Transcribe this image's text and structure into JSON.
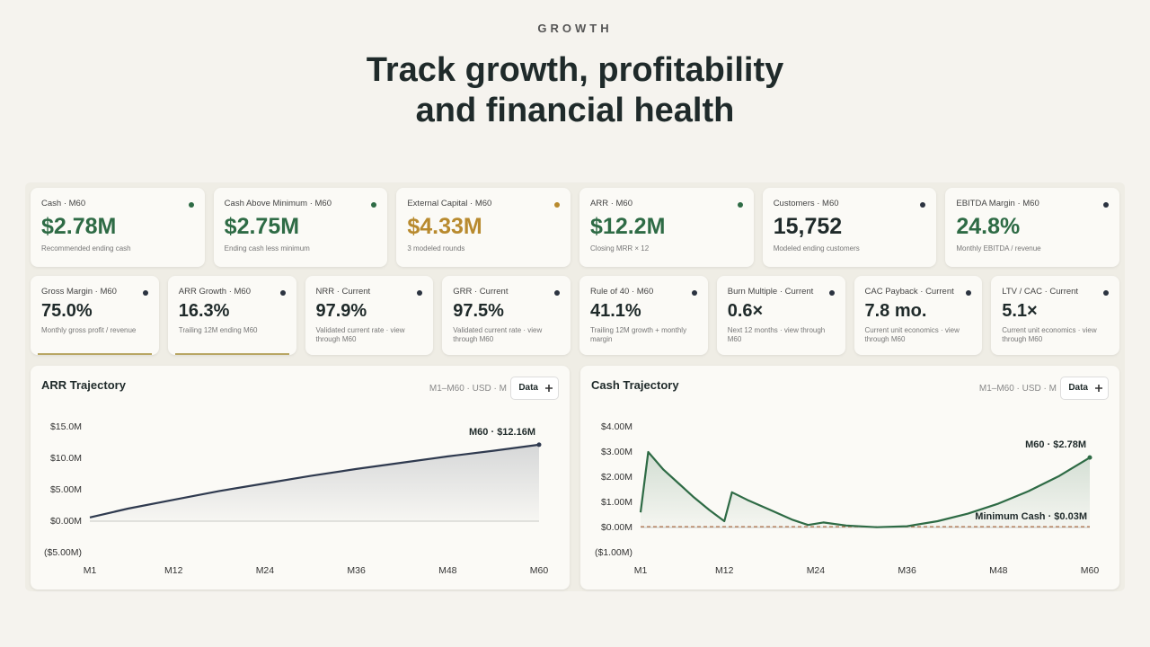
{
  "header": {
    "eyebrow": "GROWTH",
    "title_lines": [
      "Track growth, profitability",
      "and financial health"
    ]
  },
  "kpi_row1": [
    {
      "label": "Cash · M60",
      "value": "$2.78M",
      "note": "Recommended ending cash",
      "color": "#2e6b45",
      "dot": "#2e6b45"
    },
    {
      "label": "Cash Above Minimum · M60",
      "value": "$2.75M",
      "note": "Ending cash less minimum",
      "color": "#2e6b45",
      "dot": "#2e6b45"
    },
    {
      "label": "External Capital · M60",
      "value": "$4.33M",
      "note": "3 modeled rounds",
      "color": "#b88a2e",
      "dot": "#b88a2e"
    },
    {
      "label": "ARR · M60",
      "value": "$12.2M",
      "note": "Closing MRR × 12",
      "color": "#2e6b45",
      "dot": "#2e6b45"
    },
    {
      "label": "Customers · M60",
      "value": "15,752",
      "note": "Modeled ending customers",
      "color": "#1f2a2a",
      "dot": "#2b3340"
    },
    {
      "label": "EBITDA Margin · M60",
      "value": "24.8%",
      "note": "Monthly EBITDA / revenue",
      "color": "#2e6b45",
      "dot": "#2b3340"
    }
  ],
  "kpi_row2": [
    {
      "label": "Gross Margin · M60",
      "value": "75.0%",
      "note": "Monthly gross profit / revenue",
      "underline": true
    },
    {
      "label": "ARR Growth · M60",
      "value": "16.3%",
      "note": "Trailing 12M ending M60",
      "underline": true
    },
    {
      "label": "NRR · Current",
      "value": "97.9%",
      "note": "Validated current rate · view through M60"
    },
    {
      "label": "GRR · Current",
      "value": "97.5%",
      "note": "Validated current rate · view through M60"
    },
    {
      "label": "Rule of 40 · M60",
      "value": "41.1%",
      "note": "Trailing 12M growth + monthly margin"
    },
    {
      "label": "Burn Multiple · Current",
      "value": "0.6×",
      "note": "Next 12 months · view through M60"
    },
    {
      "label": "CAC Payback · Current",
      "value": "7.8 mo.",
      "note": "Current unit economics · view through M60"
    },
    {
      "label": "LTV / CAC · Current",
      "value": "5.1×",
      "note": "Current unit economics · view through M60"
    }
  ],
  "chart_data": [
    {
      "type": "area",
      "title": "ARR Trajectory",
      "subtitle": "M1–M60 · USD · M",
      "button": "Data",
      "x": [
        1,
        6,
        12,
        18,
        24,
        30,
        36,
        42,
        48,
        54,
        60
      ],
      "values": [
        0.6,
        2.0,
        3.4,
        4.8,
        6.0,
        7.2,
        8.3,
        9.3,
        10.3,
        11.2,
        12.16
      ],
      "color": "#2f3a4f",
      "annotation": "M60 · $12.16M",
      "xlim": [
        1,
        60
      ],
      "xticks": [
        {
          "value": 1,
          "label": "M1"
        },
        {
          "value": 12,
          "label": "M12"
        },
        {
          "value": 24,
          "label": "M24"
        },
        {
          "value": 36,
          "label": "M36"
        },
        {
          "value": 48,
          "label": "M48"
        },
        {
          "value": 60,
          "label": "M60"
        }
      ],
      "ylim": [
        -5,
        15
      ],
      "yticks": [
        {
          "value": -5,
          "label": "($5.00M)"
        },
        {
          "value": 0,
          "label": "$0.00M"
        },
        {
          "value": 5,
          "label": "$5.00M"
        },
        {
          "value": 10,
          "label": "$10.0M"
        },
        {
          "value": 15,
          "label": "$15.0M"
        }
      ]
    },
    {
      "type": "area",
      "title": "Cash Trajectory",
      "subtitle": "M1–M60 · USD · M",
      "button": "Data",
      "x": [
        1,
        2,
        4,
        6,
        8,
        10,
        12,
        13,
        15,
        18,
        21,
        23,
        24,
        25,
        28,
        32,
        36,
        40,
        44,
        48,
        52,
        56,
        60
      ],
      "values": [
        0.6,
        3.0,
        2.3,
        1.75,
        1.2,
        0.7,
        0.25,
        1.4,
        1.1,
        0.7,
        0.3,
        0.1,
        0.15,
        0.2,
        0.08,
        0.01,
        0.05,
        0.25,
        0.55,
        0.95,
        1.45,
        2.05,
        2.78
      ],
      "color": "#2e6b45",
      "annotation": "M60 · $2.78M",
      "reference_line": {
        "value": 0.03,
        "label": "Minimum Cash · $0.03M",
        "color": "#b0704a"
      },
      "xlim": [
        1,
        60
      ],
      "xticks": [
        {
          "value": 1,
          "label": "M1"
        },
        {
          "value": 12,
          "label": "M12"
        },
        {
          "value": 24,
          "label": "M24"
        },
        {
          "value": 36,
          "label": "M36"
        },
        {
          "value": 48,
          "label": "M48"
        },
        {
          "value": 60,
          "label": "M60"
        }
      ],
      "ylim": [
        -1,
        4
      ],
      "yticks": [
        {
          "value": -1,
          "label": "($1.00M)"
        },
        {
          "value": 0,
          "label": "$0.00M"
        },
        {
          "value": 1,
          "label": "$1.00M"
        },
        {
          "value": 2,
          "label": "$2.00M"
        },
        {
          "value": 3,
          "label": "$3.00M"
        },
        {
          "value": 4,
          "label": "$4.00M"
        }
      ]
    }
  ]
}
